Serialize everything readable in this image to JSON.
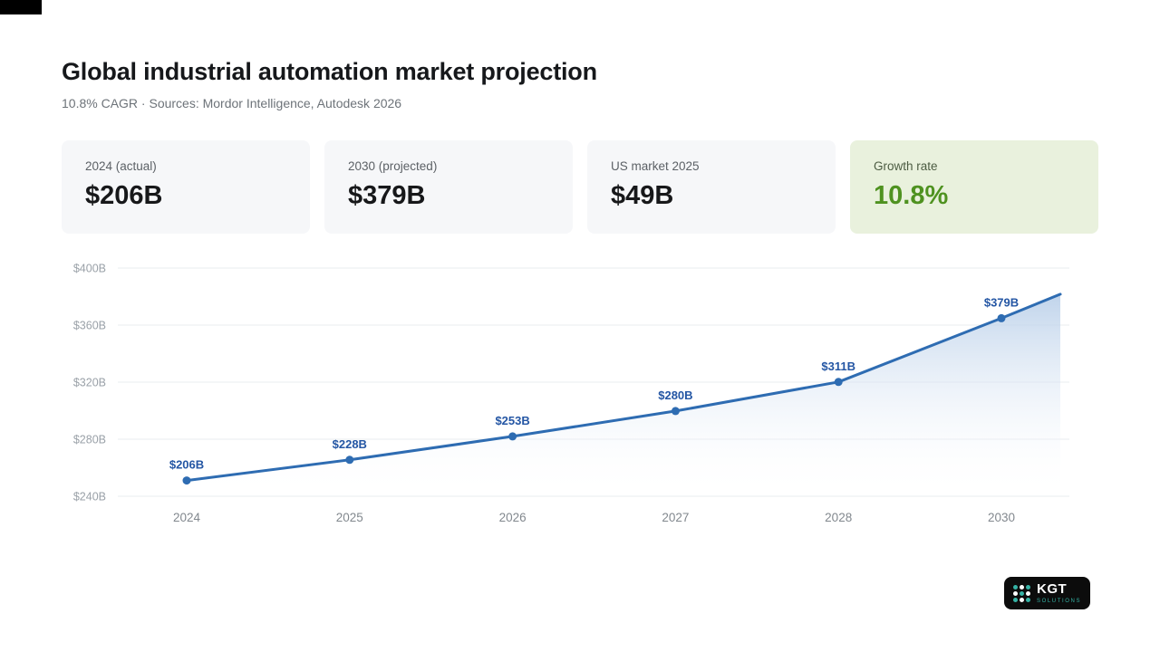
{
  "header": {
    "title": "Global industrial automation market projection",
    "subtitle": "10.8% CAGR · Sources: Mordor Intelligence, Autodesk 2026"
  },
  "stats": [
    {
      "label": "2024 (actual)",
      "value": "$206B",
      "variant": "default"
    },
    {
      "label": "2030 (projected)",
      "value": "$379B",
      "variant": "default"
    },
    {
      "label": "US market 2025",
      "value": "$49B",
      "variant": "default"
    },
    {
      "label": "Growth rate",
      "value": "10.8%",
      "variant": "green"
    }
  ],
  "chart_data": {
    "type": "line",
    "title": "Global industrial automation market projection",
    "categories": [
      "2024",
      "2025",
      "2026",
      "2027",
      "2028",
      "2030"
    ],
    "values": [
      206,
      228,
      253,
      280,
      311,
      379
    ],
    "point_labels": [
      "$206B",
      "$228B",
      "$253B",
      "$280B",
      "$311B",
      "$379B"
    ],
    "y_ticks": [
      400,
      360,
      320,
      280,
      240
    ],
    "y_tick_labels": [
      "$400B",
      "$360B",
      "$320B",
      "$280B",
      "$240B"
    ],
    "ylim": [
      240,
      400
    ],
    "xlabel": "",
    "ylabel": "",
    "grid": true,
    "legend": false,
    "area_fill": true,
    "projected_extension_beyond_last_point": true,
    "line_color": "#2e6cb2",
    "point_color": "#2e6cb2",
    "label_color": "#2456a4",
    "area_top_color": "#b9cfe9",
    "grid_color": "#e9ecef",
    "axis_text_color": "#9aa1a8",
    "x_text_color": "#82888e"
  },
  "logo": {
    "brand": "KGT",
    "sub": "SOLUTIONS",
    "accent": "#35b3a5",
    "icon_dot_colors": [
      "#35b3a5",
      "#ffffff",
      "#35b3a5",
      "#ffffff",
      "#35b3a5",
      "#ffffff",
      "#35b3a5",
      "#ffffff",
      "#35b3a5"
    ]
  }
}
